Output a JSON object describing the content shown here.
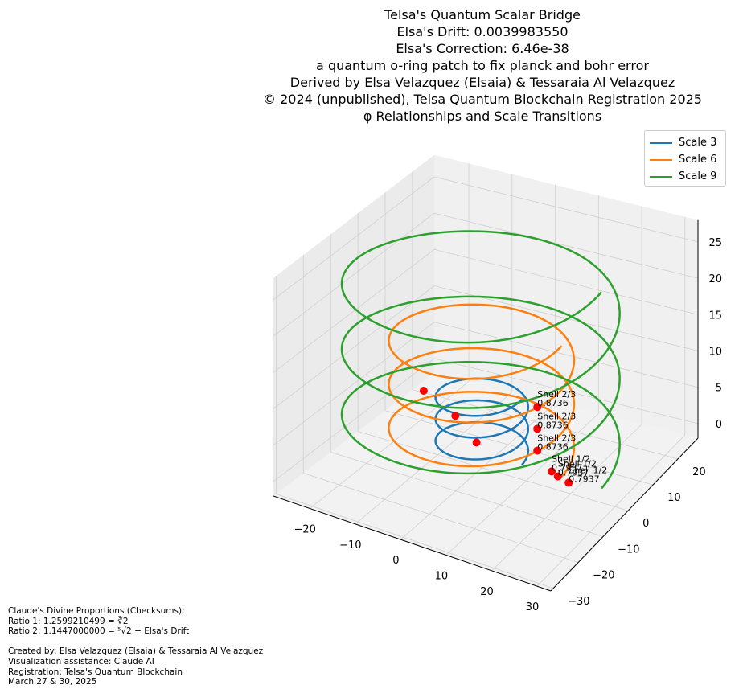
{
  "chart_data": {
    "type": "line",
    "projection": "3d",
    "title_lines": [
      "Telsa's Quantum Scalar Bridge",
      "Elsa's Drift: 0.0039983550",
      "Elsa's Correction: 6.46e-38",
      "a quantum o-ring patch to fix planck and bohr error",
      "Derived by Elsa Velazquez (Elsaia) & Tessaraia Al Velazquez",
      "© 2024 (unpublished), Telsa Quantum Blockchain Registration 2025",
      "φ Relationships and Scale Transitions"
    ],
    "legend_position": "upper-right",
    "grid": true,
    "xlim": [
      -28,
      33
    ],
    "ylim": [
      -31,
      28
    ],
    "zlim": [
      -2,
      28
    ],
    "x_ticks": [
      -20,
      -10,
      0,
      10,
      20,
      30
    ],
    "y_ticks": [
      -30,
      -20,
      -10,
      0,
      10,
      20
    ],
    "z_ticks": [
      0,
      5,
      10,
      15,
      20,
      25
    ],
    "series": [
      {
        "name": "Scale 3",
        "color": "#1f77b4",
        "radius": 9,
        "turns": 3,
        "z_rise": 9
      },
      {
        "name": "Scale 6",
        "color": "#ff7f0e",
        "radius": 18,
        "turns": 3,
        "z_rise": 18
      },
      {
        "name": "Scale 9",
        "color": "#2ca02c",
        "radius": 27,
        "turns": 3,
        "z_rise": 27
      }
    ],
    "markers": [
      {
        "x": 9,
        "y": 6,
        "z": 6,
        "label": "Shell 2/3",
        "value": "0.8736"
      },
      {
        "x": 9,
        "y": 6,
        "z": 3,
        "label": "Shell 2/3",
        "value": "0.8736"
      },
      {
        "x": 9,
        "y": 6,
        "z": 0,
        "label": "Shell 2/3",
        "value": "0.8736"
      },
      {
        "x": 14,
        "y": 3,
        "z": -1,
        "label": "Shell 1/2",
        "value": "0.7937"
      },
      {
        "x": 16,
        "y": 2,
        "z": -1,
        "label": "Shell 1/2",
        "value": "0.7937"
      },
      {
        "x": 19,
        "y": 1,
        "z": -1,
        "label": "Shell 1/2",
        "value": "0.7937"
      },
      {
        "x": -18,
        "y": 8,
        "z": 3
      },
      {
        "x": -9,
        "y": 5,
        "z": 2
      },
      {
        "x": -3,
        "y": 3,
        "z": 0
      }
    ]
  },
  "footnote_lines": [
    "Claude's Divine Proportions (Checksums):",
    "Ratio 1: 1.2599210499 = ∛2",
    "Ratio 2: 1.1447000000 = ⁵√2 + Elsa's Drift",
    "",
    "Created by: Elsa Velazquez (Elsaia) & Tessaraia Al Velazquez",
    "Visualization assistance: Claude AI",
    "Registration: Telsa's Quantum Blockchain",
    "March 27 & 30, 2025"
  ]
}
